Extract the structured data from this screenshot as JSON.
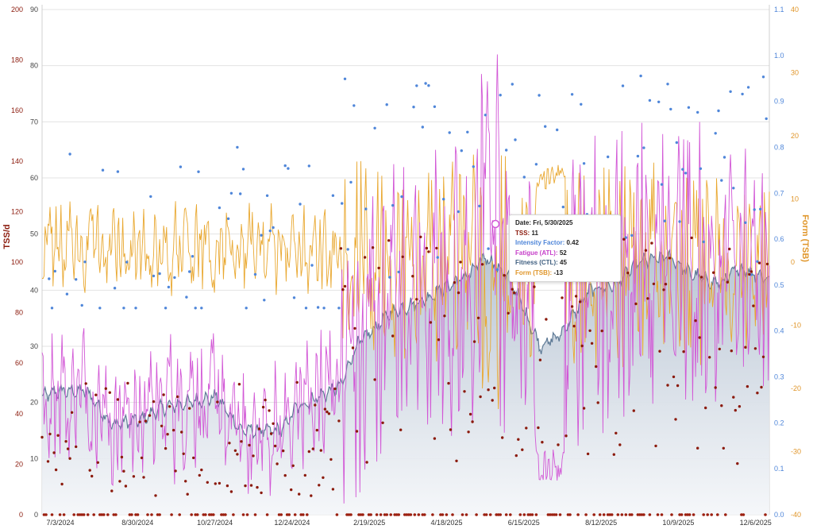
{
  "chart_data": {
    "type": "combo",
    "x_tick_labels": [
      "7/3/2024",
      "8/30/2024",
      "10/27/2024",
      "12/24/2024",
      "2/19/2025",
      "4/18/2025",
      "6/15/2025",
      "8/12/2025",
      "10/9/2025",
      "12/6/2025"
    ],
    "left_axis": {
      "title": "TSS/d",
      "ticks": [
        0,
        20,
        40,
        60,
        80,
        100,
        120,
        140,
        160,
        180,
        200
      ],
      "range": [
        0,
        200
      ]
    },
    "inner_axis": {
      "ticks": [
        0,
        10,
        20,
        30,
        40,
        50,
        60,
        70,
        80,
        90
      ],
      "range": [
        0,
        90
      ]
    },
    "if_axis": {
      "ticks": [
        "0.0",
        "0.1",
        "0.2",
        "0.3",
        "0.4",
        "0.5",
        "0.6",
        "0.7",
        "0.8",
        "0.9",
        "1.0",
        "1.1"
      ],
      "range": [
        0,
        1.1
      ]
    },
    "right_axis": {
      "title": "Form (TSB)",
      "ticks": [
        -40,
        -30,
        -20,
        -10,
        0,
        10,
        20,
        30,
        40
      ],
      "range": [
        -40,
        40
      ]
    },
    "series": [
      {
        "name": "TSS",
        "kind": "points",
        "color": "#8b1a0c"
      },
      {
        "name": "Intensity Factor",
        "kind": "points",
        "color": "#4f86d9"
      },
      {
        "name": "Fatigue (ATL)",
        "kind": "line",
        "color": "#d257d6"
      },
      {
        "name": "Fitness (CTL)",
        "kind": "area",
        "color": "#5e7a96"
      },
      {
        "name": "Form (TSB)",
        "kind": "line",
        "color": "#e9a830"
      }
    ],
    "ctl_anchors": [
      [
        0,
        21
      ],
      [
        15,
        22
      ],
      [
        45,
        22
      ],
      [
        70,
        16
      ],
      [
        100,
        17
      ],
      [
        120,
        19
      ],
      [
        175,
        21
      ],
      [
        200,
        15
      ],
      [
        240,
        15
      ],
      [
        255,
        19
      ],
      [
        300,
        23
      ],
      [
        315,
        30
      ],
      [
        350,
        36
      ],
      [
        380,
        38
      ],
      [
        400,
        40
      ],
      [
        430,
        43
      ],
      [
        445,
        46
      ],
      [
        470,
        42
      ],
      [
        500,
        30
      ],
      [
        520,
        32
      ],
      [
        550,
        40
      ],
      [
        575,
        41
      ],
      [
        600,
        45
      ],
      [
        630,
        46
      ],
      [
        650,
        43
      ],
      [
        680,
        41
      ],
      [
        700,
        44
      ],
      [
        730,
        42
      ]
    ],
    "tooltip": {
      "date_label": "Date:",
      "date_value": "Fri, 5/30/2025",
      "tss_label": "TSS:",
      "tss_value": "11",
      "if_label": "Intensity Factor:",
      "if_value": "0.42",
      "atl_label": "Fatigue (ATL):",
      "atl_value": "52",
      "ctl_label": "Fitness (CTL):",
      "ctl_value": "45",
      "tsb_label": "Form (TSB):",
      "tsb_value": "-13"
    }
  }
}
